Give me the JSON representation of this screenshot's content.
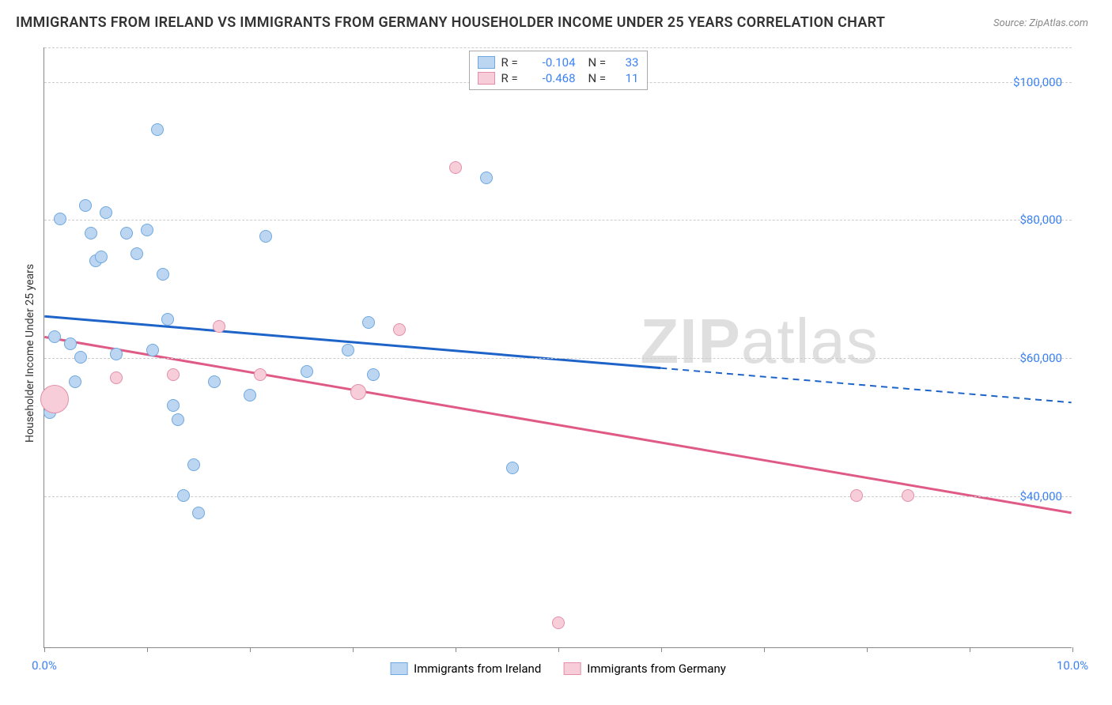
{
  "title": "IMMIGRANTS FROM IRELAND VS IMMIGRANTS FROM GERMANY HOUSEHOLDER INCOME UNDER 25 YEARS CORRELATION CHART",
  "source": "Source: ZipAtlas.com",
  "watermark_bold": "ZIP",
  "watermark_light": "atlas",
  "ylabel": "Householder Income Under 25 years",
  "chart": {
    "type": "scatter",
    "xlim": [
      0,
      10
    ],
    "ylim": [
      18000,
      105000
    ],
    "background_color": "#ffffff",
    "grid_color": "#cccccc",
    "ytick_values": [
      40000,
      60000,
      80000,
      100000
    ],
    "ytick_labels": [
      "$40,000",
      "$60,000",
      "$80,000",
      "$100,000"
    ],
    "xtick_values": [
      0,
      1,
      2,
      3,
      4,
      5,
      6,
      7,
      8,
      9,
      10
    ],
    "xtick_labels_shown": {
      "0": "0.0%",
      "10": "10.0%"
    },
    "axis_label_color": "#3b82f6",
    "axis_label_fontsize": 15
  },
  "series": [
    {
      "key": "ireland",
      "label": "Immigrants from Ireland",
      "fill": "#bcd6f2",
      "stroke": "#6fa8e0",
      "trend_color": "#1d63c8",
      "r_value": "-0.104",
      "n_value": "33",
      "trend": {
        "x1": 0,
        "y1": 66000,
        "x2_solid": 6.0,
        "y2_solid": 58500,
        "x2_dash": 10.0,
        "y2_dash": 53500
      },
      "points": [
        {
          "x": 0.05,
          "y": 52000,
          "r": 8
        },
        {
          "x": 0.1,
          "y": 63000,
          "r": 8
        },
        {
          "x": 0.15,
          "y": 80000,
          "r": 8
        },
        {
          "x": 0.25,
          "y": 62000,
          "r": 8
        },
        {
          "x": 0.35,
          "y": 60000,
          "r": 8
        },
        {
          "x": 0.4,
          "y": 82000,
          "r": 8
        },
        {
          "x": 0.45,
          "y": 78000,
          "r": 8
        },
        {
          "x": 0.5,
          "y": 74000,
          "r": 8
        },
        {
          "x": 0.55,
          "y": 74500,
          "r": 8
        },
        {
          "x": 0.6,
          "y": 81000,
          "r": 8
        },
        {
          "x": 0.7,
          "y": 60500,
          "r": 8
        },
        {
          "x": 0.8,
          "y": 78000,
          "r": 8
        },
        {
          "x": 0.9,
          "y": 75000,
          "r": 8
        },
        {
          "x": 1.0,
          "y": 78500,
          "r": 8
        },
        {
          "x": 1.05,
          "y": 61000,
          "r": 8
        },
        {
          "x": 1.1,
          "y": 93000,
          "r": 8
        },
        {
          "x": 1.15,
          "y": 72000,
          "r": 8
        },
        {
          "x": 1.2,
          "y": 65500,
          "r": 8
        },
        {
          "x": 1.25,
          "y": 53000,
          "r": 8
        },
        {
          "x": 1.3,
          "y": 51000,
          "r": 8
        },
        {
          "x": 1.35,
          "y": 40000,
          "r": 8
        },
        {
          "x": 1.45,
          "y": 44500,
          "r": 8
        },
        {
          "x": 1.5,
          "y": 37500,
          "r": 8
        },
        {
          "x": 1.65,
          "y": 56500,
          "r": 8
        },
        {
          "x": 2.0,
          "y": 54500,
          "r": 8
        },
        {
          "x": 2.15,
          "y": 77500,
          "r": 8
        },
        {
          "x": 2.55,
          "y": 58000,
          "r": 8
        },
        {
          "x": 2.95,
          "y": 61000,
          "r": 8
        },
        {
          "x": 3.15,
          "y": 65000,
          "r": 8
        },
        {
          "x": 3.2,
          "y": 57500,
          "r": 8
        },
        {
          "x": 4.3,
          "y": 86000,
          "r": 8
        },
        {
          "x": 4.55,
          "y": 44000,
          "r": 8
        },
        {
          "x": 0.3,
          "y": 56500,
          "r": 8
        }
      ]
    },
    {
      "key": "germany",
      "label": "Immigrants from Germany",
      "fill": "#f6cdd8",
      "stroke": "#e48faa",
      "trend_color": "#e05a86",
      "r_value": "-0.468",
      "n_value": "11",
      "trend": {
        "x1": 0,
        "y1": 63000,
        "x2_solid": 10.0,
        "y2_solid": 37500,
        "x2_dash": 10.0,
        "y2_dash": 37500
      },
      "points": [
        {
          "x": 0.1,
          "y": 54000,
          "r": 18
        },
        {
          "x": 0.7,
          "y": 57000,
          "r": 8
        },
        {
          "x": 1.25,
          "y": 57500,
          "r": 8
        },
        {
          "x": 1.7,
          "y": 64500,
          "r": 8
        },
        {
          "x": 2.1,
          "y": 57500,
          "r": 8
        },
        {
          "x": 3.05,
          "y": 55000,
          "r": 10
        },
        {
          "x": 3.45,
          "y": 64000,
          "r": 8
        },
        {
          "x": 4.0,
          "y": 87500,
          "r": 8
        },
        {
          "x": 5.0,
          "y": 21500,
          "r": 8
        },
        {
          "x": 7.9,
          "y": 40000,
          "r": 8
        },
        {
          "x": 8.4,
          "y": 40000,
          "r": 8
        }
      ]
    }
  ]
}
